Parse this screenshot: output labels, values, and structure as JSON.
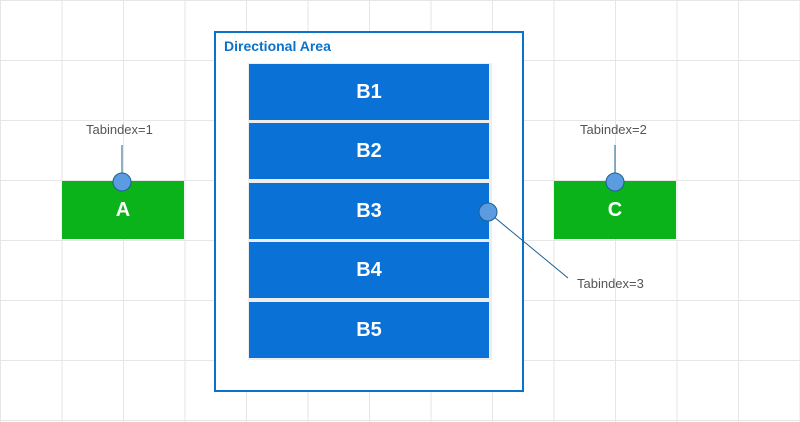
{
  "area": {
    "title": "Directional Area"
  },
  "boxes": {
    "a": "A",
    "b1": "B1",
    "b2": "B2",
    "b3": "B3",
    "b4": "B4",
    "b5": "B5",
    "c": "C"
  },
  "callouts": {
    "tabindex1": "Tabindex=1",
    "tabindex2": "Tabindex=2",
    "tabindex3": "Tabindex=3"
  },
  "colors": {
    "blue": "#0a72d6",
    "green": "#0bb31b",
    "border": "#0a72c9"
  }
}
